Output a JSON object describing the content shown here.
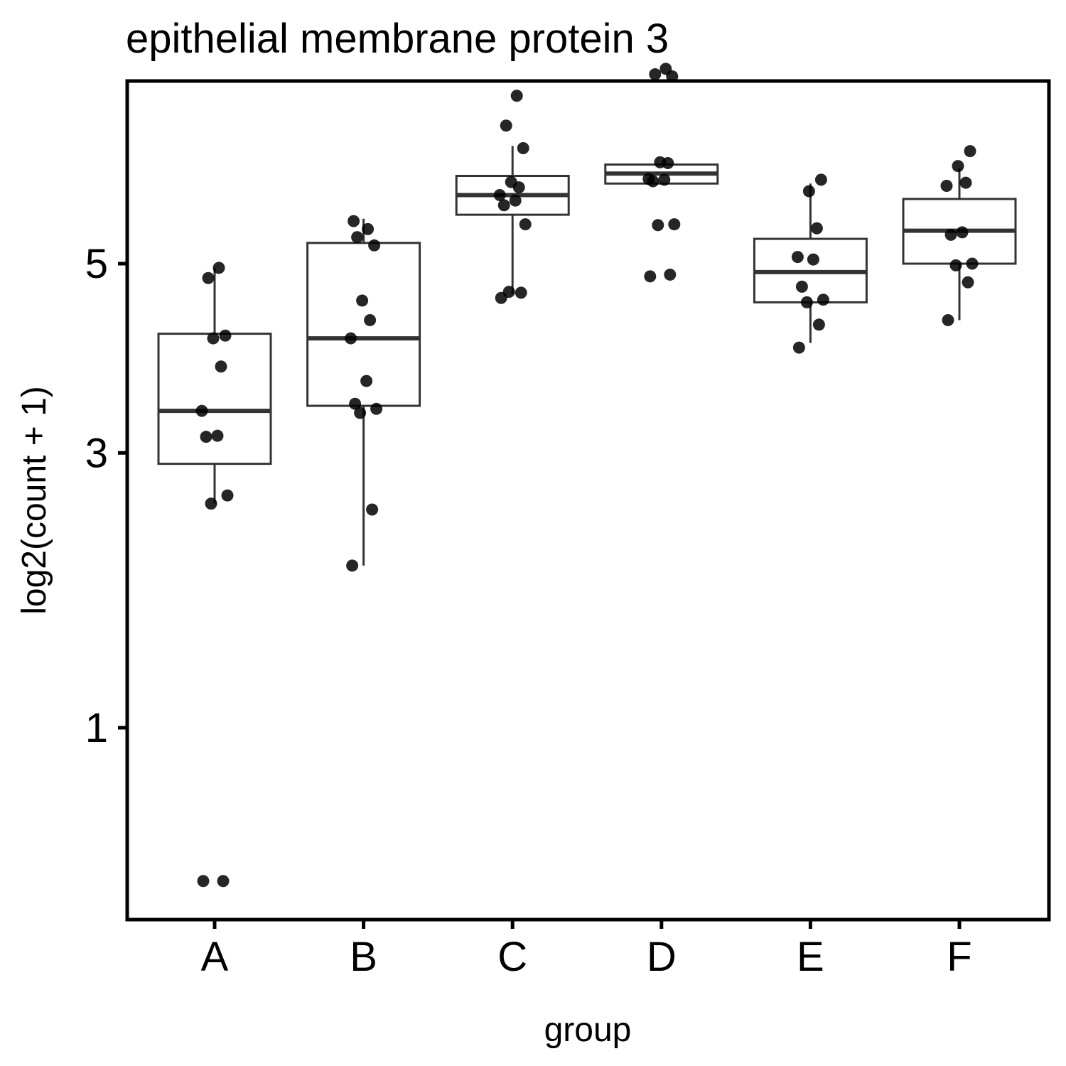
{
  "chart_data": {
    "type": "box",
    "title": "epithelial membrane protein 3",
    "xlabel": "group",
    "ylabel": "log2(count + 1)",
    "y_scale": "sqrt",
    "y_ticks": [
      1,
      3,
      5
    ],
    "ylim": [
      0.25,
      7.3
    ],
    "grid": false,
    "legend": "none",
    "categories": [
      "A",
      "B",
      "C",
      "D",
      "E",
      "F"
    ],
    "boxes": [
      {
        "group": "A",
        "q1": 2.9,
        "median": 3.4,
        "q3": 4.2,
        "whisker_low": 2.55,
        "whisker_high": 4.95
      },
      {
        "group": "B",
        "q1": 3.45,
        "median": 4.15,
        "q3": 5.25,
        "whisker_low": 2.05,
        "whisker_high": 5.55
      },
      {
        "group": "C",
        "q1": 5.6,
        "median": 5.85,
        "q3": 6.1,
        "whisker_low": 4.65,
        "whisker_high": 6.5
      },
      {
        "group": "D",
        "q1": 6.0,
        "median": 6.13,
        "q3": 6.25,
        "whisker_low": 6.0,
        "whisker_high": 6.25
      },
      {
        "group": "E",
        "q1": 4.55,
        "median": 4.9,
        "q3": 5.3,
        "whisker_low": 4.1,
        "whisker_high": 6.0
      },
      {
        "group": "F",
        "q1": 5.0,
        "median": 5.4,
        "q3": 5.8,
        "whisker_low": 4.35,
        "whisker_high": 6.2
      }
    ],
    "points": [
      {
        "group": "A",
        "values": [
          0.35,
          0.35,
          2.55,
          2.62,
          3.15,
          3.16,
          3.4,
          3.85,
          4.15,
          4.18,
          4.83,
          4.95
        ]
      },
      {
        "group": "B",
        "values": [
          2.05,
          2.5,
          3.38,
          3.42,
          3.47,
          3.7,
          4.15,
          4.35,
          4.57,
          5.22,
          5.32,
          5.42,
          5.52
        ]
      },
      {
        "group": "C",
        "values": [
          4.6,
          4.66,
          4.67,
          5.48,
          5.72,
          5.78,
          5.85,
          5.95,
          6.02,
          6.47,
          6.78,
          7.2
        ]
      },
      {
        "group": "D",
        "values": [
          4.85,
          4.87,
          5.47,
          5.48,
          6.03,
          6.05,
          6.06,
          6.27,
          6.28,
          7.48,
          7.51,
          7.59
        ]
      },
      {
        "group": "E",
        "values": [
          4.05,
          4.3,
          4.55,
          4.58,
          4.73,
          5.05,
          5.08,
          5.43,
          5.9,
          6.05
        ]
      },
      {
        "group": "F",
        "values": [
          4.35,
          4.78,
          4.98,
          5.0,
          5.35,
          5.38,
          5.97,
          6.01,
          6.23,
          6.43
        ]
      }
    ]
  }
}
